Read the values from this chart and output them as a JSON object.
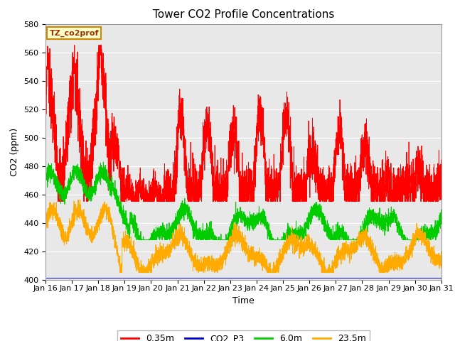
{
  "title": "Tower CO2 Profile Concentrations",
  "xlabel": "Time",
  "ylabel": "CO2 (ppm)",
  "ylim": [
    400,
    580
  ],
  "yticks": [
    400,
    420,
    440,
    460,
    480,
    500,
    520,
    540,
    560,
    580
  ],
  "xlim": [
    0,
    15
  ],
  "xtick_labels": [
    "Jan 16",
    "Jan 17",
    "Jan 18",
    "Jan 19",
    "Jan 20",
    "Jan 21",
    "Jan 22",
    "Jan 23",
    "Jan 24",
    "Jan 25",
    "Jan 26",
    "Jan 27",
    "Jan 28",
    "Jan 29",
    "Jan 30",
    "Jan 31"
  ],
  "legend_label": "TZ_co2prof",
  "series_labels": [
    "0.35m",
    "CO2_P3",
    "6.0m",
    "23.5m"
  ],
  "series_colors": [
    "#ff0000",
    "#0000cc",
    "#00cc00",
    "#ffaa00"
  ],
  "plot_bg_color": "#e8e8e8",
  "grid_color": "#ffffff",
  "title_fontsize": 11,
  "axis_label_fontsize": 9,
  "tick_fontsize": 8
}
